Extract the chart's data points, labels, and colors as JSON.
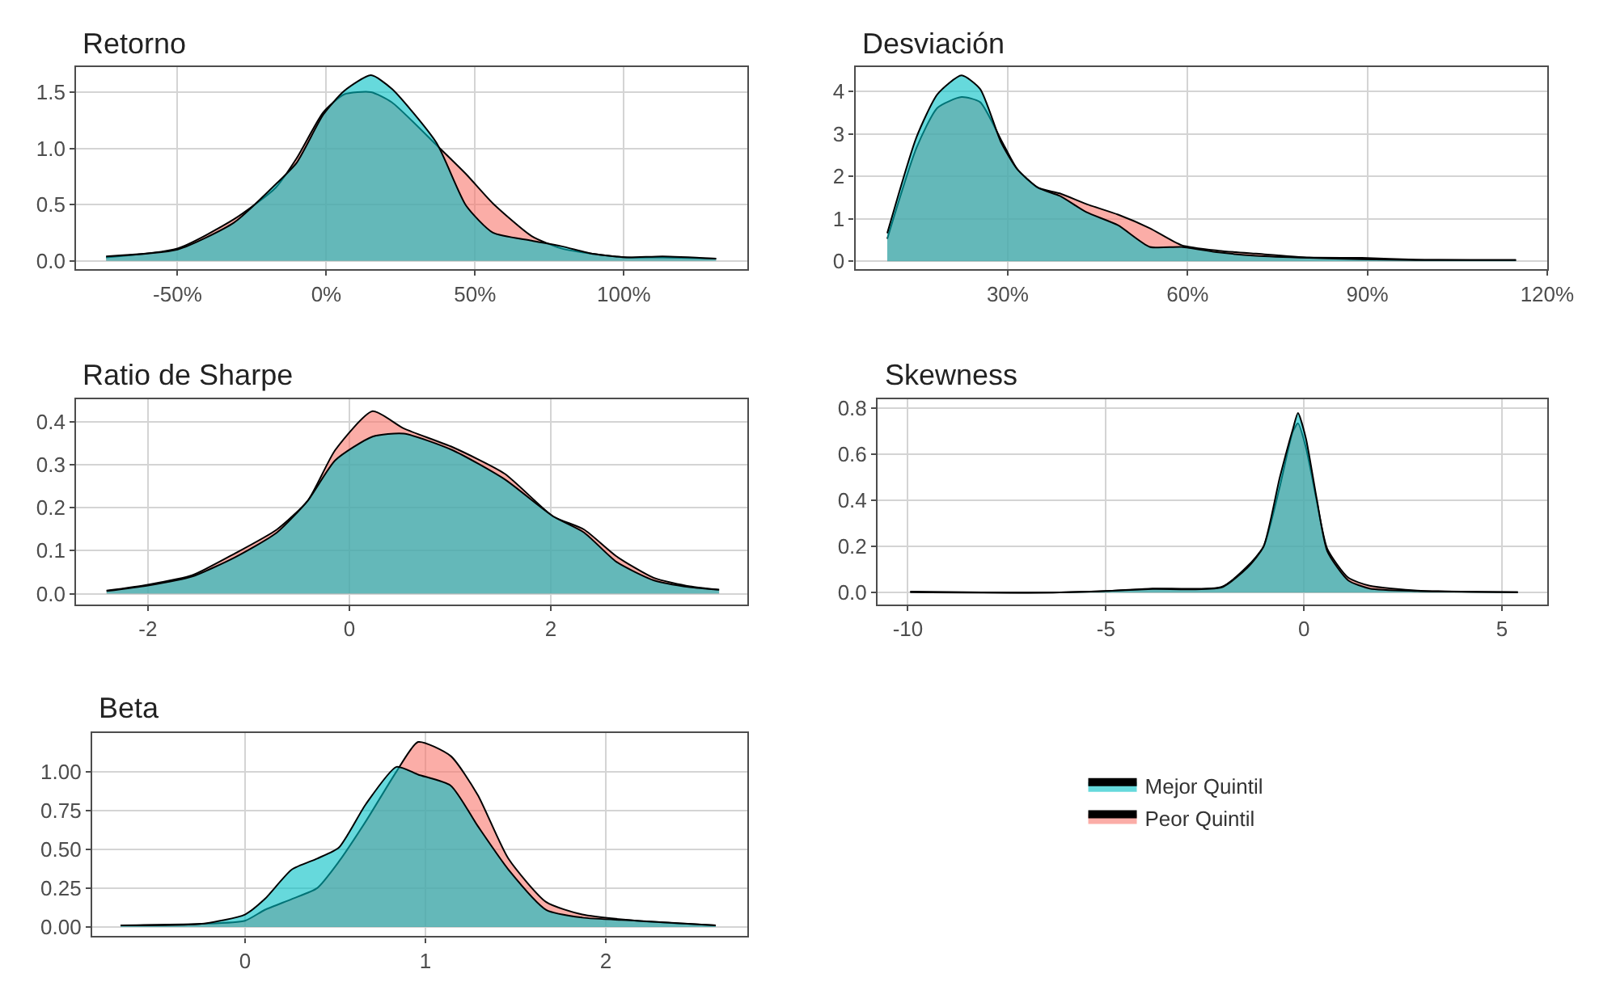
{
  "chart_data": [
    {
      "type": "area",
      "title": "Retorno",
      "x": [
        -74,
        -50,
        -31,
        -17,
        -10,
        -1,
        6,
        15,
        22,
        37,
        47,
        56,
        69,
        79,
        90,
        101,
        113,
        131
      ],
      "xlim": [
        -84,
        141.5
      ],
      "xticks": [
        {
          "value": -50,
          "label": "-50%"
        },
        {
          "value": 0,
          "label": "0%"
        },
        {
          "value": 50,
          "label": "50%"
        },
        {
          "value": 100,
          "label": "100%"
        }
      ],
      "ylim": [
        -0.076,
        1.72
      ],
      "yticks": [
        {
          "value": 0,
          "label": "0.0"
        },
        {
          "value": 0.5,
          "label": "0.5"
        },
        {
          "value": 1,
          "label": "1.0"
        },
        1.5
      ],
      "grid": true,
      "legend": "bottom right",
      "series": [
        {
          "name": "Mejor Quintil",
          "color": "#00bfc4",
          "values": [
            0.04,
            0.1,
            0.34,
            0.68,
            0.87,
            1.3,
            1.51,
            1.65,
            1.53,
            1.05,
            0.49,
            0.25,
            0.18,
            0.13,
            0.06,
            0.03,
            0.04,
            0.02
          ]
        },
        {
          "name": "Peor Quintil",
          "color": "#f8766d",
          "values": [
            0.03,
            0.11,
            0.37,
            0.65,
            0.91,
            1.32,
            1.48,
            1.5,
            1.41,
            1.03,
            0.77,
            0.51,
            0.22,
            0.11,
            0.06,
            0.03,
            0.03,
            0.02
          ]
        }
      ]
    },
    {
      "type": "area",
      "title": "Desviación",
      "x": [
        9.9,
        14.8,
        18.3,
        22.3,
        25.4,
        28.9,
        31.6,
        35.1,
        38.7,
        43.1,
        48.4,
        53.7,
        59,
        65.2,
        71.4,
        80.3,
        89.1,
        98,
        114.8
      ],
      "xlim": [
        4.6,
        120
      ],
      "xticks": [
        {
          "value": 30,
          "label": "30%"
        },
        {
          "value": 60,
          "label": "60%"
        },
        {
          "value": 90,
          "label": "90%"
        },
        {
          "value": 120,
          "label": "120%"
        }
      ],
      "ylim": [
        -0.19,
        4.57
      ],
      "yticks": [
        0,
        1,
        2,
        3,
        4
      ],
      "grid": true,
      "series": [
        {
          "color": "#00bfc4",
          "values": [
            0.66,
            2.93,
            3.94,
            4.38,
            4.06,
            2.8,
            2.17,
            1.73,
            1.54,
            1.16,
            0.85,
            0.34,
            0.34,
            0.21,
            0.13,
            0.08,
            0.05,
            0.03,
            0.03
          ]
        },
        {
          "color": "#f8766d",
          "values": [
            0.53,
            2.68,
            3.62,
            3.87,
            3.75,
            2.86,
            2.17,
            1.73,
            1.6,
            1.35,
            1.1,
            0.78,
            0.38,
            0.25,
            0.18,
            0.09,
            0.08,
            0.04,
            0.03
          ]
        }
      ]
    },
    {
      "type": "area",
      "title": "Ratio de Sharpe",
      "x": [
        -2.41,
        -2,
        -1.56,
        -1.14,
        -0.72,
        -0.41,
        -0.14,
        0.23,
        0.54,
        1.02,
        1.54,
        2.02,
        2.33,
        2.65,
        3.02,
        3.38,
        3.67
      ],
      "xlim": [
        -2.71,
        3.95
      ],
      "xticks": [
        -2,
        0,
        2
      ],
      "ylim": [
        -0.025,
        0.452
      ],
      "yticks": [
        {
          "value": 0,
          "label": "0.0"
        },
        0.1,
        0.2,
        0.3,
        0.4
      ],
      "grid": true,
      "series": [
        {
          "color": "#00bfc4",
          "values": [
            0.006,
            0.019,
            0.04,
            0.084,
            0.142,
            0.217,
            0.31,
            0.365,
            0.372,
            0.334,
            0.266,
            0.18,
            0.142,
            0.074,
            0.031,
            0.015,
            0.009
          ]
        },
        {
          "color": "#f8766d",
          "values": [
            0.007,
            0.021,
            0.043,
            0.093,
            0.149,
            0.217,
            0.334,
            0.424,
            0.384,
            0.341,
            0.279,
            0.18,
            0.149,
            0.087,
            0.037,
            0.017,
            0.009
          ]
        }
      ]
    },
    {
      "type": "area",
      "title": "Skewness",
      "x": [
        -9.94,
        -6.49,
        -4.97,
        -3.82,
        -2.08,
        -1.42,
        -1.02,
        -0.61,
        -0.28,
        -0.15,
        0.05,
        0.32,
        0.59,
        1.12,
        1.66,
        2.86,
        5.4
      ],
      "xlim": [
        -10.76,
        6.14
      ],
      "xticks": [
        -10,
        -5,
        0,
        5
      ],
      "ylim": [
        -0.051,
        0.84
      ],
      "yticks": [
        {
          "value": 0,
          "label": "0.0"
        },
        0.2,
        0.4,
        0.6,
        0.8
      ],
      "grid": true,
      "series": [
        {
          "color": "#00bfc4",
          "values": [
            0.002,
            0,
            0.007,
            0.016,
            0.023,
            0.11,
            0.2,
            0.5,
            0.71,
            0.78,
            0.67,
            0.41,
            0.18,
            0.053,
            0.018,
            0.007,
            0.002
          ]
        },
        {
          "color": "#f8766d",
          "values": [
            0.005,
            0,
            0.007,
            0.018,
            0.025,
            0.116,
            0.2,
            0.46,
            0.7,
            0.735,
            0.63,
            0.4,
            0.19,
            0.065,
            0.03,
            0.009,
            0.002
          ]
        }
      ]
    },
    {
      "type": "area",
      "title": "Beta",
      "x": [
        -0.69,
        -0.24,
        0,
        0.11,
        0.26,
        0.4,
        0.52,
        0.67,
        0.84,
        0.96,
        1.14,
        1.29,
        1.46,
        1.67,
        1.87,
        2.17,
        2.61
      ],
      "xlim": [
        -0.847,
        2.785
      ],
      "xticks": [
        0,
        1,
        2
      ],
      "ylim": [
        -0.06,
        1.25
      ],
      "yticks": [
        {
          "value": 0,
          "label": "0.00"
        },
        {
          "value": 0.25,
          "label": "0.25"
        },
        {
          "value": 0.5,
          "label": "0.50"
        },
        {
          "value": 0.75,
          "label": "0.75"
        },
        {
          "value": 1,
          "label": "1.00"
        }
      ],
      "grid": true,
      "series": [
        {
          "color": "#00bfc4",
          "values": [
            0.01,
            0.02,
            0.08,
            0.18,
            0.37,
            0.44,
            0.51,
            0.79,
            1.03,
            0.98,
            0.91,
            0.65,
            0.37,
            0.11,
            0.06,
            0.04,
            0.01
          ]
        },
        {
          "color": "#f8766d",
          "values": [
            0.01,
            0.02,
            0.04,
            0.11,
            0.18,
            0.25,
            0.42,
            0.68,
            1.0,
            1.19,
            1.1,
            0.85,
            0.44,
            0.16,
            0.08,
            0.04,
            0.01
          ]
        }
      ]
    }
  ]
}
